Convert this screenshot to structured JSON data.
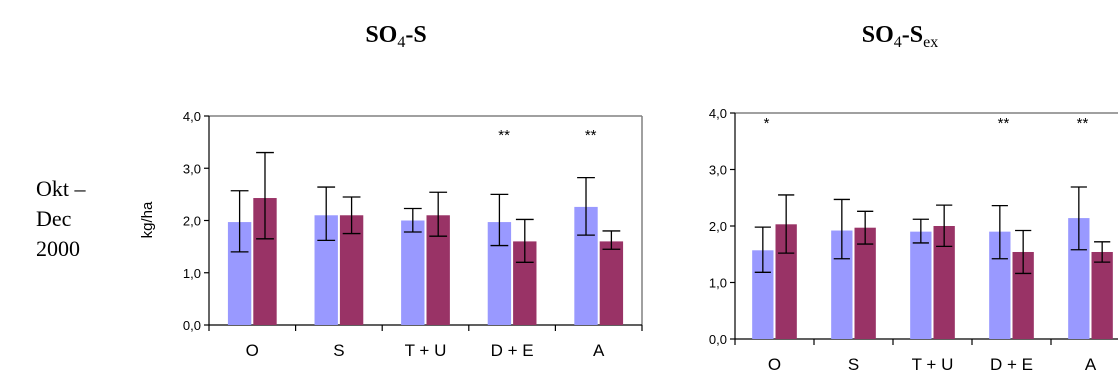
{
  "side_label": {
    "line1": "Okt –",
    "line2": "Dec",
    "line3": "2000"
  },
  "colors": {
    "series1": "#9999ff",
    "series2": "#993366"
  },
  "chart_data": [
    {
      "type": "bar",
      "title": "SO4-S",
      "title_base": "SO",
      "title_sub": "4",
      "title_rest": "-S",
      "title_sub2": "",
      "ylabel": "kg/ha",
      "ylim": [
        0,
        4
      ],
      "yticks": [
        "0,0",
        "1,0",
        "2,0",
        "3,0",
        "4,0"
      ],
      "categories": [
        "O",
        "S",
        "T + U",
        "D + E",
        "A"
      ],
      "series": [
        {
          "values": [
            1.97,
            2.1,
            2.0,
            1.97,
            2.26
          ],
          "err_low": [
            1.4,
            1.62,
            1.78,
            1.52,
            1.72
          ],
          "err_high": [
            2.57,
            2.64,
            2.23,
            2.5,
            2.82
          ]
        },
        {
          "values": [
            2.43,
            2.1,
            2.1,
            1.6,
            1.6
          ],
          "err_low": [
            1.65,
            1.75,
            1.7,
            1.2,
            1.45
          ],
          "err_high": [
            3.3,
            2.45,
            2.54,
            2.02,
            1.8
          ]
        }
      ],
      "annotations": [
        "",
        "",
        "",
        "**",
        "**"
      ]
    },
    {
      "type": "bar",
      "title": "SO4-Sex",
      "title_base": "SO",
      "title_sub": "4",
      "title_rest": "-S",
      "title_sub2": "ex",
      "ylabel": "",
      "ylim": [
        0,
        4
      ],
      "yticks": [
        "0,0",
        "1,0",
        "2,0",
        "3,0",
        "4,0"
      ],
      "categories": [
        "O",
        "S",
        "T + U",
        "D + E",
        "A"
      ],
      "series": [
        {
          "values": [
            1.57,
            1.92,
            1.9,
            1.9,
            2.14
          ],
          "err_low": [
            1.18,
            1.42,
            1.7,
            1.42,
            1.58
          ],
          "err_high": [
            1.98,
            2.47,
            2.12,
            2.36,
            2.69
          ]
        },
        {
          "values": [
            2.03,
            1.97,
            2.0,
            1.54,
            1.54
          ],
          "err_low": [
            1.52,
            1.68,
            1.64,
            1.16,
            1.36
          ],
          "err_high": [
            2.55,
            2.26,
            2.37,
            1.92,
            1.72
          ]
        }
      ],
      "annotations": [
        "*",
        "",
        "",
        "**",
        "**"
      ]
    }
  ]
}
